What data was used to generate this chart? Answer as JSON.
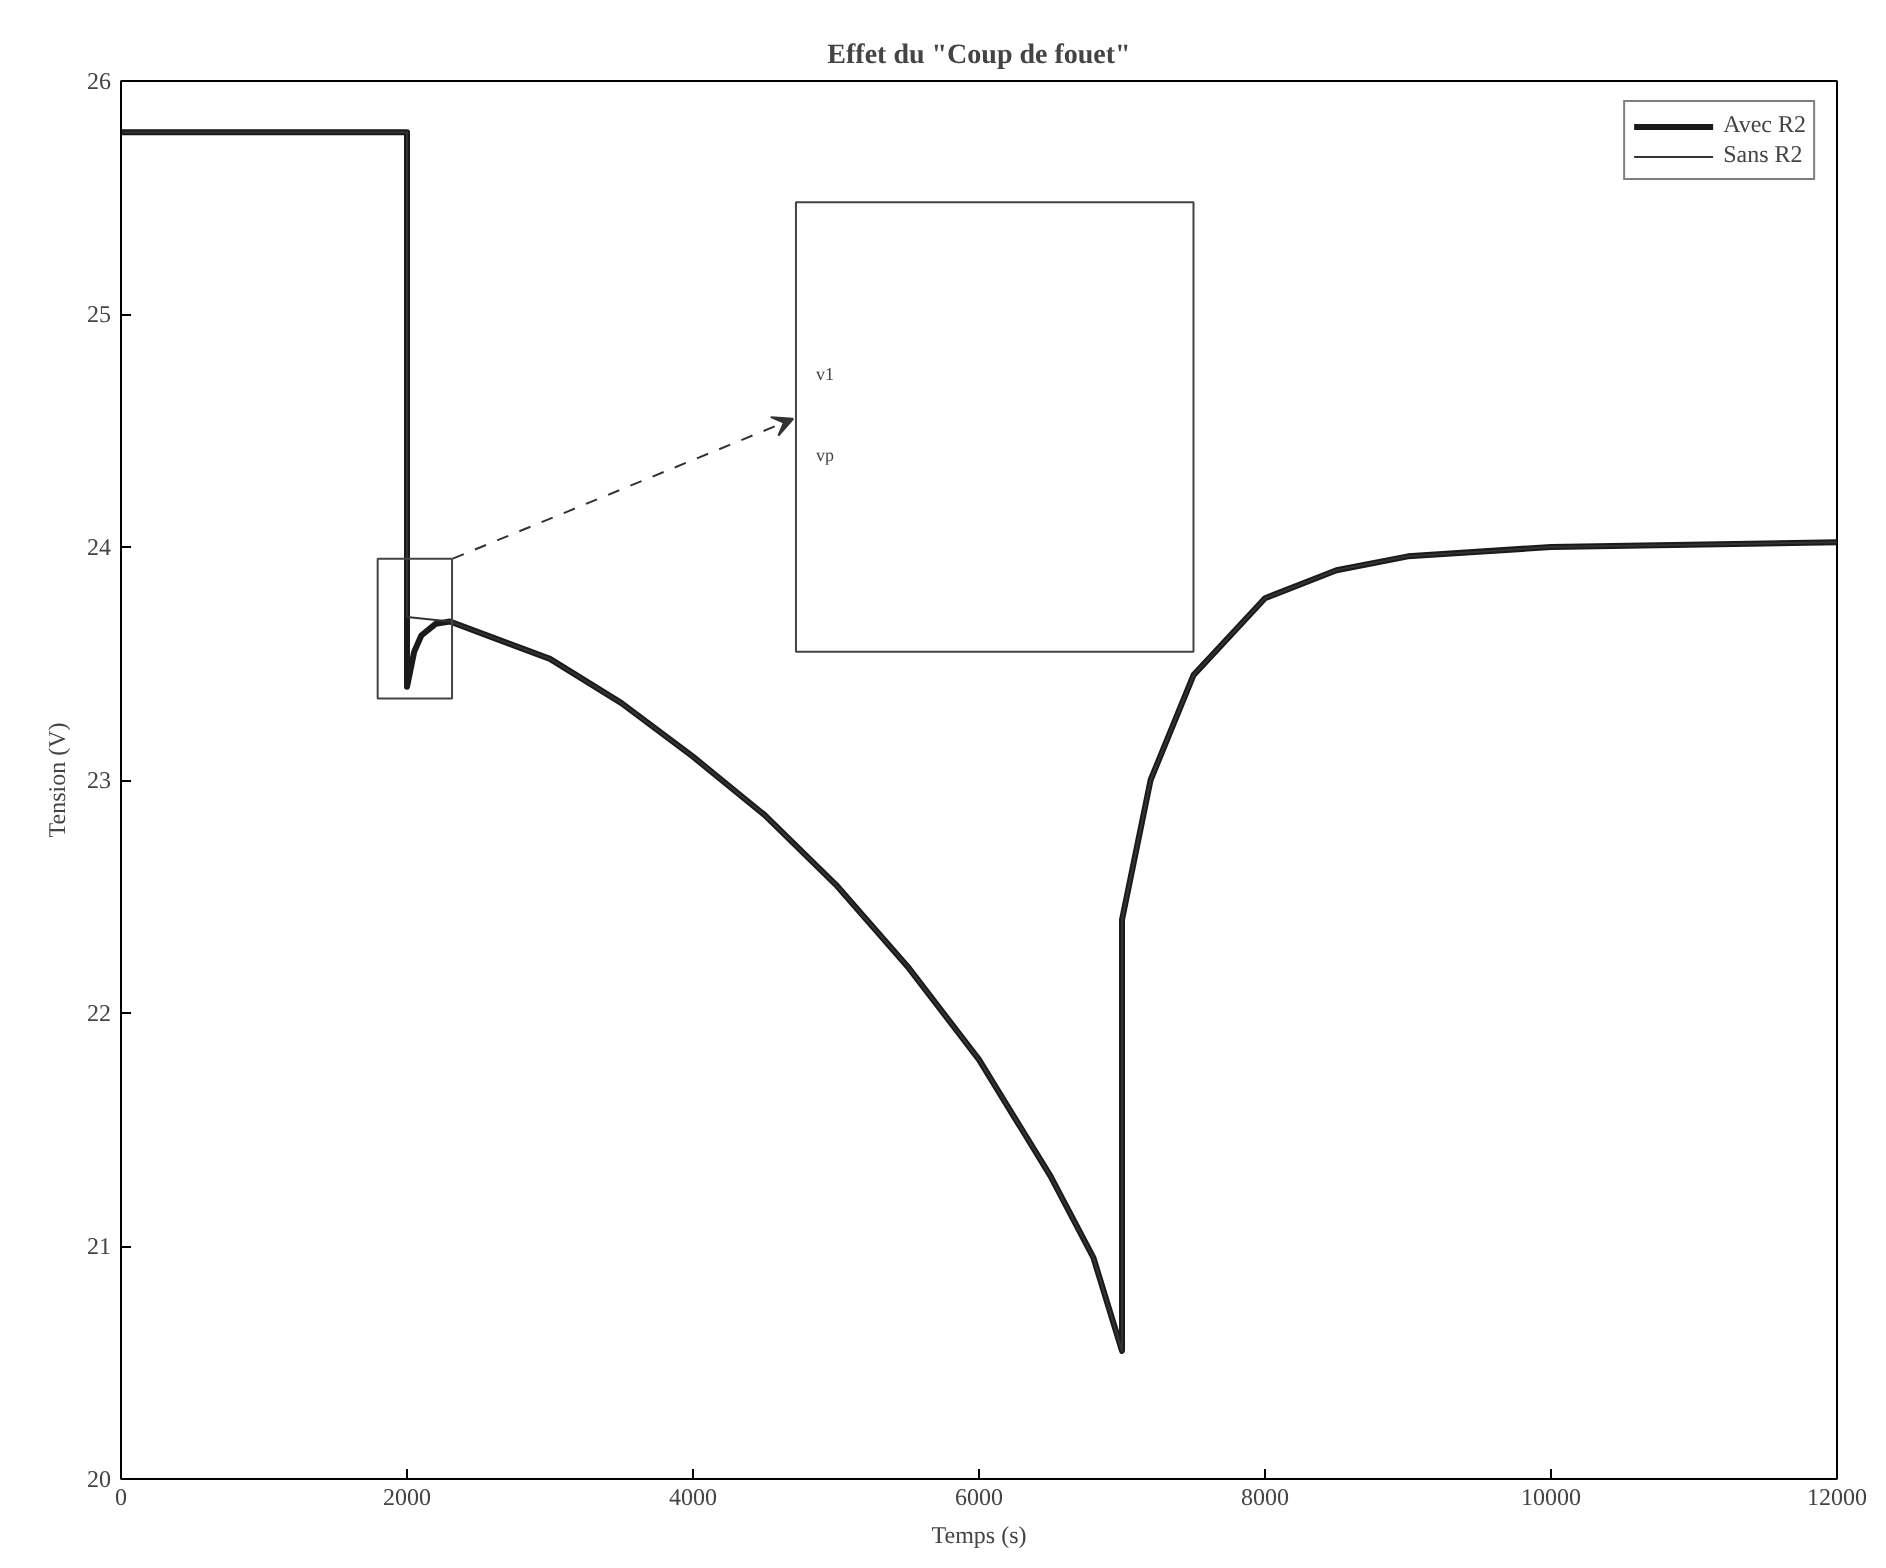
{
  "chart_data": {
    "type": "line",
    "title": "Effet du \"Coup de fouet\"",
    "xlabel": "Temps (s)",
    "ylabel": "Tension (V)",
    "xlim": [
      0,
      12000
    ],
    "ylim": [
      20,
      26
    ],
    "xticks": [
      0,
      2000,
      4000,
      6000,
      8000,
      10000,
      12000
    ],
    "yticks": [
      20,
      21,
      22,
      23,
      24,
      25,
      26
    ],
    "grid": false,
    "legend": "top right",
    "annotations": [
      "v1",
      "vp"
    ],
    "series": [
      {
        "name": "Avec R2",
        "color": "#1a1a1a",
        "x": [
          0,
          2000,
          2000,
          2050,
          2100,
          2200,
          2300,
          3000,
          3500,
          4000,
          4500,
          5000,
          5500,
          6000,
          6500,
          6800,
          7000,
          7000,
          7200,
          7500,
          8000,
          8500,
          9000,
          10000,
          12000
        ],
        "values": [
          25.78,
          25.78,
          23.4,
          23.55,
          23.62,
          23.67,
          23.68,
          23.52,
          23.33,
          23.1,
          22.85,
          22.55,
          22.2,
          21.8,
          21.3,
          20.95,
          20.55,
          22.4,
          23.0,
          23.45,
          23.78,
          23.9,
          23.96,
          24.0,
          24.02
        ]
      },
      {
        "name": "Sans R2",
        "color": "#333333",
        "x": [
          0,
          2000,
          2000,
          2300,
          3000,
          3500,
          4000,
          4500,
          5000,
          5500,
          6000,
          6500,
          6800,
          7000,
          7000,
          7200,
          7500,
          8000,
          8500,
          9000,
          10000,
          12000
        ],
        "values": [
          25.78,
          25.78,
          23.7,
          23.68,
          23.52,
          23.33,
          23.1,
          22.85,
          22.55,
          22.2,
          21.8,
          21.3,
          20.95,
          20.55,
          22.4,
          23.0,
          23.45,
          23.78,
          23.9,
          23.96,
          24.0,
          24.02
        ]
      }
    ]
  }
}
